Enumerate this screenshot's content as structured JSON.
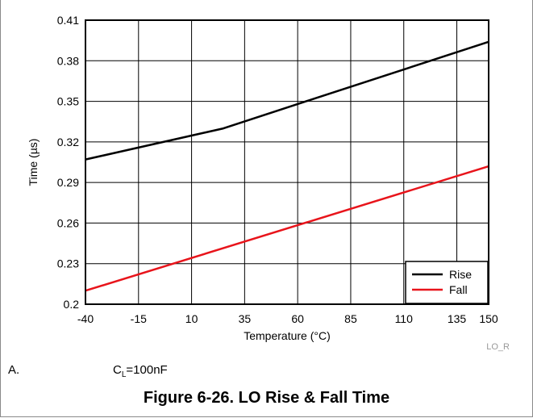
{
  "chart_data": {
    "type": "line",
    "xlabel": "Temperature (°C)",
    "ylabel": "Time (µs)",
    "x_ticks": [
      -40,
      -15,
      10,
      35,
      60,
      85,
      110,
      135,
      150
    ],
    "y_ticks": [
      0.2,
      0.23,
      0.26,
      0.29,
      0.32,
      0.35,
      0.38,
      0.41
    ],
    "x_tick_labels": [
      "-40",
      "-15",
      "10",
      "35",
      "60",
      "85",
      "110",
      "135",
      "150"
    ],
    "y_tick_labels": [
      "0.2",
      "0.23",
      "0.26",
      "0.29",
      "0.32",
      "0.35",
      "0.38",
      "0.41"
    ],
    "xlim": [
      -40,
      150
    ],
    "ylim": [
      0.2,
      0.41
    ],
    "grid": true,
    "legend_position": "bottom-right",
    "series": [
      {
        "name": "Rise",
        "color": "#000000",
        "x": [
          -40,
          25,
          60,
          150
        ],
        "y": [
          0.307,
          0.33,
          0.348,
          0.394
        ]
      },
      {
        "name": "Fall",
        "color": "#e8141b",
        "x": [
          -40,
          150
        ],
        "y": [
          0.21,
          0.302
        ]
      }
    ],
    "graph_code": "LO_R"
  },
  "note": {
    "letter": "A.",
    "prefix": "C",
    "subscript": "L",
    "suffix": "=100nF"
  },
  "caption": "Figure 6-26. LO Rise & Fall Time"
}
